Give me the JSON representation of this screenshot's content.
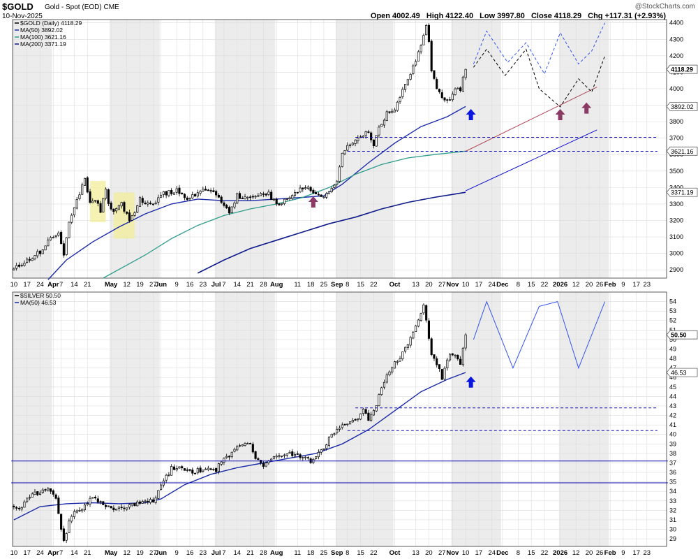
{
  "header": {
    "symbol": "$GOLD",
    "description": "Gold - Spot (EOD) CME",
    "date": "10-Nov-2025",
    "logo": "@StockCharts.com",
    "ohlc": {
      "open_label": "Open",
      "open": "4002.49",
      "high_label": "High",
      "high": "4122.40",
      "low_label": "Low",
      "low": "3997.80",
      "close_label": "Close",
      "close": "4118.29",
      "chg_label": "Chg",
      "chg": "+117.31 (+2.93%)"
    }
  },
  "x_axis": {
    "labels": [
      {
        "t": "10",
        "i": 0
      },
      {
        "t": "17",
        "i": 5
      },
      {
        "t": "24",
        "i": 10
      },
      {
        "t": "Apr",
        "i": 15,
        "b": true
      },
      {
        "t": "7",
        "i": 18
      },
      {
        "t": "14",
        "i": 23
      },
      {
        "t": "21",
        "i": 28
      },
      {
        "t": "May",
        "i": 37,
        "b": true
      },
      {
        "t": "12",
        "i": 43
      },
      {
        "t": "19",
        "i": 48
      },
      {
        "t": "27",
        "i": 53
      },
      {
        "t": "Jun",
        "i": 56,
        "b": true
      },
      {
        "t": "9",
        "i": 62
      },
      {
        "t": "16",
        "i": 67
      },
      {
        "t": "23",
        "i": 72
      },
      {
        "t": "Jul",
        "i": 77,
        "b": true
      },
      {
        "t": "7",
        "i": 80
      },
      {
        "t": "14",
        "i": 85
      },
      {
        "t": "21",
        "i": 90
      },
      {
        "t": "28",
        "i": 95
      },
      {
        "t": "Aug",
        "i": 100,
        "b": true
      },
      {
        "t": "11",
        "i": 108
      },
      {
        "t": "18",
        "i": 113
      },
      {
        "t": "25",
        "i": 118
      },
      {
        "t": "Sep",
        "i": 123,
        "b": true
      },
      {
        "t": "8",
        "i": 127
      },
      {
        "t": "15",
        "i": 132
      },
      {
        "t": "22",
        "i": 137
      },
      {
        "t": "Oct",
        "i": 145,
        "b": true
      },
      {
        "t": "13",
        "i": 153
      },
      {
        "t": "20",
        "i": 158
      },
      {
        "t": "27",
        "i": 163
      },
      {
        "t": "Nov",
        "i": 167,
        "b": true
      },
      {
        "t": "10",
        "i": 172
      },
      {
        "t": "17",
        "i": 177
      },
      {
        "t": "24",
        "i": 182
      },
      {
        "t": "Dec",
        "i": 186,
        "b": true
      },
      {
        "t": "8",
        "i": 192
      },
      {
        "t": "15",
        "i": 197
      },
      {
        "t": "22",
        "i": 202
      },
      {
        "t": "2026",
        "i": 208,
        "b": true
      },
      {
        "t": "12",
        "i": 214
      },
      {
        "t": "20",
        "i": 219
      },
      {
        "t": "26",
        "i": 223
      },
      {
        "t": "Feb",
        "i": 227,
        "b": true
      },
      {
        "t": "9",
        "i": 232
      },
      {
        "t": "17",
        "i": 237
      },
      {
        "t": "23",
        "i": 241
      }
    ],
    "shade_months": [
      [
        0,
        15
      ],
      [
        37,
        56
      ],
      [
        77,
        100
      ],
      [
        123,
        145
      ],
      [
        167,
        186
      ],
      [
        208,
        227
      ]
    ]
  },
  "chart_data": [
    {
      "type": "candlestick",
      "id": "gold",
      "legend": [
        "$GOLD (Daily) 4118.29",
        "MA(50) 3892.02",
        "MA(100) 3621.16",
        "MA(200) 3371.19"
      ],
      "ylim": [
        2850,
        4420
      ],
      "yticks": [
        2900,
        3000,
        3100,
        3200,
        3300,
        3400,
        3500,
        3600,
        3700,
        3800,
        3900,
        4000,
        4100,
        4200,
        4300,
        4400
      ],
      "price_tags": [
        {
          "label": "4118.29",
          "value": 4118.29,
          "bold": true
        },
        {
          "label": "3892.02",
          "value": 3892.02
        },
        {
          "label": "3621.16",
          "value": 3621.16
        },
        {
          "label": "3371.19",
          "value": 3371.19
        }
      ],
      "anchors": [
        [
          0,
          2900
        ],
        [
          5,
          2960
        ],
        [
          10,
          3010
        ],
        [
          15,
          3110
        ],
        [
          17,
          3120
        ],
        [
          19,
          2980
        ],
        [
          21,
          3200
        ],
        [
          24,
          3320
        ],
        [
          27,
          3460
        ],
        [
          29,
          3300
        ],
        [
          31,
          3330
        ],
        [
          33,
          3260
        ],
        [
          35,
          3400
        ],
        [
          36,
          3300
        ],
        [
          38,
          3250
        ],
        [
          41,
          3300
        ],
        [
          44,
          3200
        ],
        [
          46,
          3260
        ],
        [
          48,
          3340
        ],
        [
          50,
          3300
        ],
        [
          53,
          3300
        ],
        [
          56,
          3360
        ],
        [
          62,
          3380
        ],
        [
          67,
          3330
        ],
        [
          72,
          3400
        ],
        [
          77,
          3350
        ],
        [
          80,
          3300
        ],
        [
          82,
          3240
        ],
        [
          85,
          3350
        ],
        [
          90,
          3330
        ],
        [
          95,
          3370
        ],
        [
          97,
          3360
        ],
        [
          100,
          3300
        ],
        [
          105,
          3330
        ],
        [
          110,
          3400
        ],
        [
          113,
          3390
        ],
        [
          118,
          3330
        ],
        [
          120,
          3370
        ],
        [
          123,
          3450
        ],
        [
          125,
          3600
        ],
        [
          127,
          3650
        ],
        [
          132,
          3700
        ],
        [
          135,
          3750
        ],
        [
          137,
          3650
        ],
        [
          139,
          3760
        ],
        [
          142,
          3850
        ],
        [
          145,
          3880
        ],
        [
          148,
          4000
        ],
        [
          151,
          4100
        ],
        [
          155,
          4250
        ],
        [
          157,
          4380
        ],
        [
          158,
          4300
        ],
        [
          159,
          4100
        ],
        [
          160,
          4050
        ],
        [
          161,
          4000
        ],
        [
          163,
          3950
        ],
        [
          166,
          3930
        ],
        [
          168,
          4010
        ],
        [
          170,
          4000
        ],
        [
          172,
          4118
        ]
      ],
      "ma50_pts": [
        [
          13,
          2840
        ],
        [
          20,
          2960
        ],
        [
          30,
          3070
        ],
        [
          40,
          3160
        ],
        [
          50,
          3240
        ],
        [
          60,
          3300
        ],
        [
          70,
          3330
        ],
        [
          80,
          3320
        ],
        [
          90,
          3320
        ],
        [
          100,
          3330
        ],
        [
          110,
          3340
        ],
        [
          118,
          3350
        ],
        [
          125,
          3420
        ],
        [
          135,
          3550
        ],
        [
          145,
          3670
        ],
        [
          155,
          3770
        ],
        [
          165,
          3830
        ],
        [
          172,
          3892
        ]
      ],
      "ma100_pts": [
        [
          34,
          2850
        ],
        [
          50,
          2990
        ],
        [
          60,
          3090
        ],
        [
          70,
          3170
        ],
        [
          80,
          3230
        ],
        [
          90,
          3270
        ],
        [
          100,
          3300
        ],
        [
          110,
          3340
        ],
        [
          120,
          3400
        ],
        [
          130,
          3480
        ],
        [
          140,
          3540
        ],
        [
          150,
          3580
        ],
        [
          160,
          3600
        ],
        [
          172,
          3621
        ]
      ],
      "ma200_pts": [
        [
          70,
          2880
        ],
        [
          80,
          2960
        ],
        [
          90,
          3030
        ],
        [
          100,
          3080
        ],
        [
          110,
          3130
        ],
        [
          120,
          3180
        ],
        [
          130,
          3220
        ],
        [
          140,
          3270
        ],
        [
          150,
          3310
        ],
        [
          160,
          3340
        ],
        [
          172,
          3371
        ]
      ],
      "trendlines": [
        {
          "color": "#0b0bd1",
          "dash": "",
          "width": 1,
          "pts": [
            [
              172,
              3380
            ],
            [
              222,
              3750
            ]
          ]
        },
        {
          "color": "#b04a5a",
          "dash": "",
          "width": 1,
          "pts": [
            [
              172,
              3620
            ],
            [
              222,
              4010
            ]
          ]
        },
        {
          "color": "#0b0bb0",
          "dash": "4,3",
          "width": 1,
          "pts": [
            [
              130,
              3705
            ],
            [
              245,
              3705
            ]
          ]
        },
        {
          "color": "#0b0bb0",
          "dash": "4,3",
          "width": 1,
          "pts": [
            [
              127,
              3620
            ],
            [
              245,
              3620
            ]
          ]
        },
        {
          "color": "#000",
          "dash": "4,3",
          "width": 1,
          "pts": [
            [
              175,
              4130
            ],
            [
              180,
              4240
            ],
            [
              187,
              4080
            ],
            [
              195,
              4240
            ],
            [
              200,
              4000
            ],
            [
              208,
              3890
            ],
            [
              215,
              4060
            ],
            [
              220,
              3980
            ],
            [
              225,
              4200
            ]
          ]
        },
        {
          "color": "#3355ee",
          "dash": "4,3",
          "width": 1,
          "pts": [
            [
              175,
              4150
            ],
            [
              180,
              4350
            ],
            [
              188,
              4160
            ],
            [
              195,
              4280
            ],
            [
              202,
              4090
            ],
            [
              208,
              4340
            ],
            [
              215,
              4150
            ],
            [
              220,
              4230
            ],
            [
              225,
              4400
            ]
          ]
        }
      ],
      "arrows": [
        {
          "i": 114,
          "v": 3300,
          "color": "#8b3a66"
        },
        {
          "i": 174,
          "v": 3830,
          "color": "#0a16e0"
        },
        {
          "i": 208,
          "v": 3830,
          "color": "#8b3a66"
        },
        {
          "i": 218,
          "v": 3870,
          "color": "#8b3a66"
        }
      ],
      "highlights": [
        [
          29,
          3190,
          35,
          3440
        ],
        [
          38,
          3090,
          46,
          3370
        ]
      ]
    },
    {
      "type": "candlestick",
      "id": "silver",
      "legend": [
        "$SILVER 50.50",
        "MA(50) 46.53"
      ],
      "ylim": [
        28.2,
        55
      ],
      "yticks": [
        29,
        30,
        31,
        32,
        33,
        34,
        35,
        36,
        37,
        38,
        39,
        40,
        41,
        42,
        43,
        44,
        45,
        46,
        47,
        48,
        49,
        50,
        51,
        52,
        53,
        54
      ],
      "price_tags": [
        {
          "label": "50.50",
          "value": 50.5,
          "bold": true
        },
        {
          "label": "46.53",
          "value": 46.53
        }
      ],
      "anchors": [
        [
          0,
          32.5
        ],
        [
          3,
          32.3
        ],
        [
          6,
          33.5
        ],
        [
          10,
          34
        ],
        [
          14,
          34.2
        ],
        [
          16,
          33.2
        ],
        [
          18,
          30
        ],
        [
          19,
          28.6
        ],
        [
          21,
          31
        ],
        [
          24,
          32
        ],
        [
          27,
          32.5
        ],
        [
          30,
          33.3
        ],
        [
          33,
          32.7
        ],
        [
          36,
          32.5
        ],
        [
          38,
          32
        ],
        [
          42,
          32.3
        ],
        [
          46,
          32.6
        ],
        [
          50,
          33
        ],
        [
          53,
          33
        ],
        [
          56,
          34.5
        ],
        [
          60,
          36.5
        ],
        [
          62,
          36.5
        ],
        [
          67,
          36
        ],
        [
          72,
          36.3
        ],
        [
          77,
          36.3
        ],
        [
          80,
          37.5
        ],
        [
          83,
          38
        ],
        [
          86,
          38.8
        ],
        [
          90,
          39.1
        ],
        [
          92,
          37.5
        ],
        [
          95,
          36.5
        ],
        [
          98,
          37.5
        ],
        [
          100,
          37.5
        ],
        [
          105,
          38
        ],
        [
          110,
          37.5
        ],
        [
          113,
          37.2
        ],
        [
          118,
          38.5
        ],
        [
          120,
          39.5
        ],
        [
          123,
          40.5
        ],
        [
          125,
          41
        ],
        [
          130,
          41.5
        ],
        [
          133,
          42.5
        ],
        [
          135,
          41.5
        ],
        [
          137,
          42.5
        ],
        [
          139,
          44
        ],
        [
          142,
          46.5
        ],
        [
          145,
          47.5
        ],
        [
          148,
          48.5
        ],
        [
          151,
          50
        ],
        [
          154,
          52
        ],
        [
          156,
          53.5
        ],
        [
          157,
          52
        ],
        [
          158,
          50
        ],
        [
          159,
          48.5
        ],
        [
          160,
          48
        ],
        [
          161,
          47.5
        ],
        [
          163,
          46
        ],
        [
          165,
          48
        ],
        [
          167,
          48.5
        ],
        [
          170,
          47.5
        ],
        [
          172,
          50.5
        ]
      ],
      "ma50_pts": [
        [
          0,
          31
        ],
        [
          10,
          32.4
        ],
        [
          20,
          32.7
        ],
        [
          30,
          32.8
        ],
        [
          40,
          32.7
        ],
        [
          50,
          32.8
        ],
        [
          56,
          33.2
        ],
        [
          65,
          34.7
        ],
        [
          75,
          35.8
        ],
        [
          85,
          36.5
        ],
        [
          95,
          37
        ],
        [
          105,
          37.5
        ],
        [
          115,
          38
        ],
        [
          125,
          39
        ],
        [
          135,
          40.5
        ],
        [
          145,
          42.5
        ],
        [
          155,
          44.5
        ],
        [
          165,
          45.8
        ],
        [
          172,
          46.53
        ]
      ],
      "trendlines": [
        {
          "color": "#0b0bb0",
          "dash": "",
          "width": 1,
          "pts": [
            [
              -1,
              37.2
            ],
            [
              249,
              37.2
            ]
          ]
        },
        {
          "color": "#0b0bb0",
          "dash": "",
          "width": 1,
          "pts": [
            [
              -1,
              34.9
            ],
            [
              249,
              34.9
            ]
          ]
        },
        {
          "color": "#0b0bb0",
          "dash": "4,3",
          "width": 1,
          "pts": [
            [
              130,
              42.8
            ],
            [
              245,
              42.8
            ]
          ]
        },
        {
          "color": "#0b0bb0",
          "dash": "4,3",
          "width": 1,
          "pts": [
            [
              127,
              40.4
            ],
            [
              245,
              40.4
            ]
          ]
        },
        {
          "color": "#3355ee",
          "dash": "",
          "width": 1,
          "pts": [
            [
              175,
              50
            ],
            [
              180,
              54
            ],
            [
              190,
              47
            ],
            [
              200,
              53.5
            ],
            [
              207,
              54
            ],
            [
              215,
              47
            ],
            [
              225,
              54
            ]
          ]
        }
      ],
      "arrows": [
        {
          "i": 174,
          "v": 45.3,
          "color": "#0a16e0"
        }
      ],
      "highlights": []
    }
  ]
}
